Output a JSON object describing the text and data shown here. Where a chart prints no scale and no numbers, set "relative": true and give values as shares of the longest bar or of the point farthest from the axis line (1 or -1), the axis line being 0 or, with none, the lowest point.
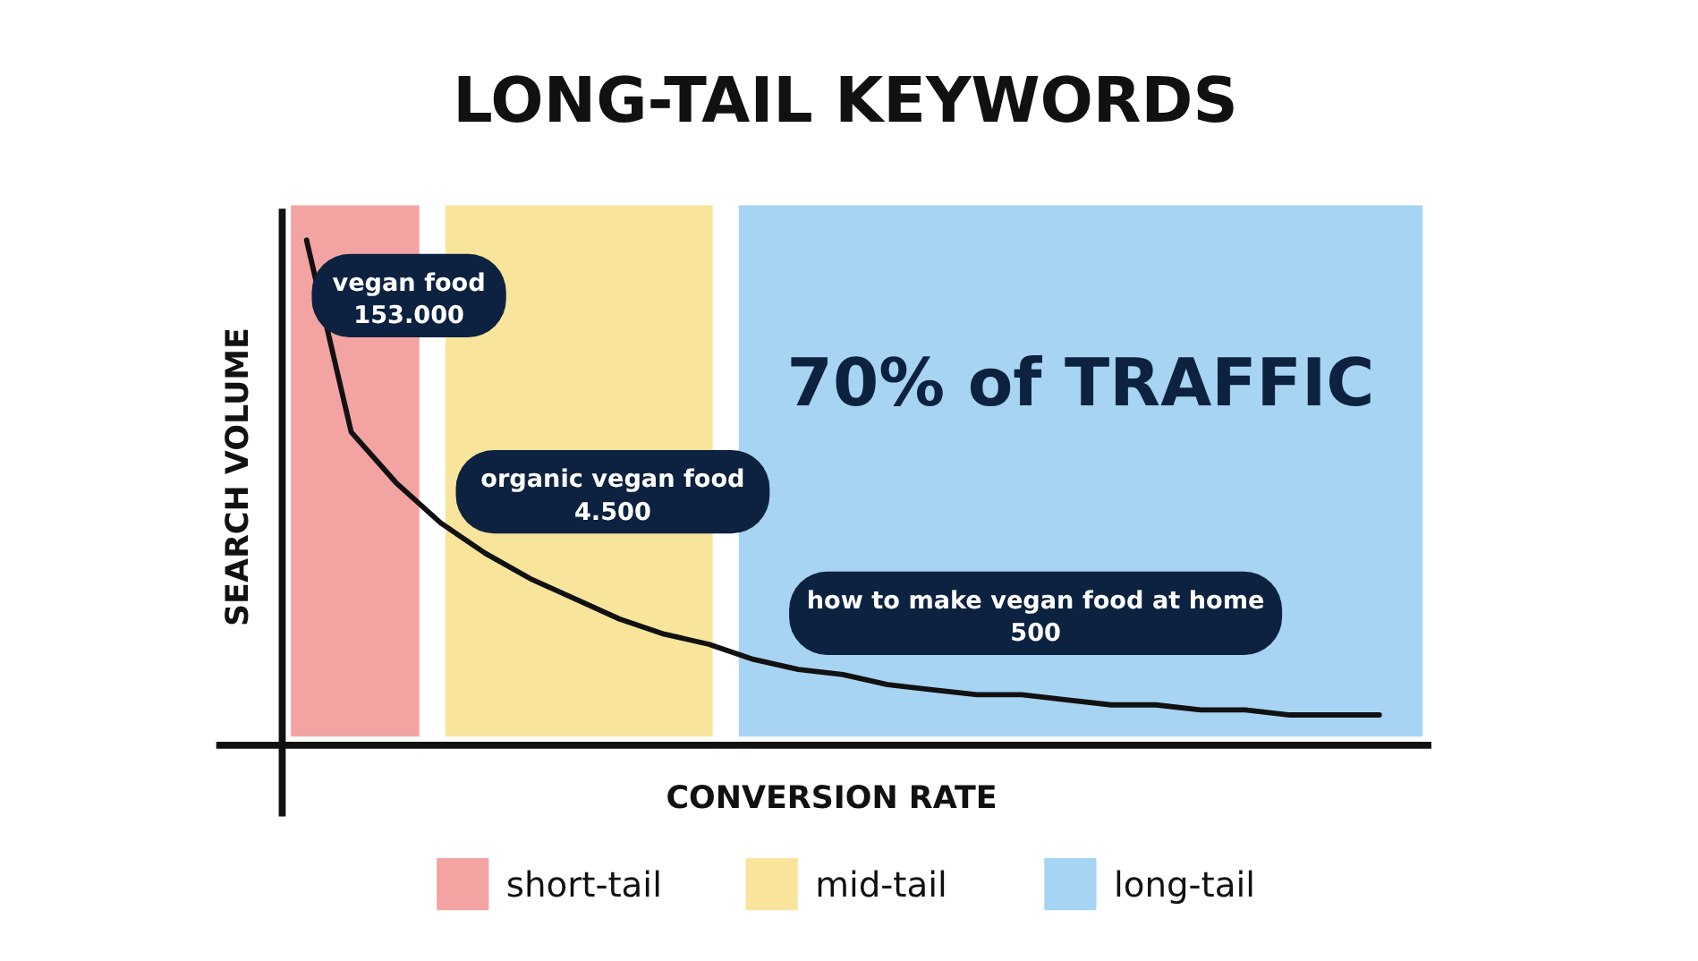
{
  "chart_data": {
    "type": "line",
    "title": "LONG-TAIL KEYWORDS",
    "xlabel": "CONVERSION RATE",
    "ylabel": "SEARCH VOLUME",
    "relative": true,
    "color": "#111111",
    "categories": [
      null,
      null,
      null,
      null,
      null,
      null,
      null,
      null,
      null,
      null,
      null,
      null,
      null,
      null,
      null,
      null,
      null,
      null,
      null,
      null,
      null,
      null,
      null,
      null,
      null
    ],
    "values": [
      1,
      0.62,
      0.52,
      0.44,
      0.38,
      0.33,
      0.29,
      0.25,
      0.22,
      0.2,
      0.17,
      0.15,
      0.14,
      0.12,
      0.11,
      0.1,
      0.1,
      0.09,
      0.08,
      0.08,
      0.07,
      0.07,
      0.06,
      0.06,
      0.06
    ],
    "annotations": [
      "vegan food\n153.000",
      "organic vegan food\n4.500",
      "how to make vegan food at home\n500",
      "70% of TRAFFIC",
      "short-tail",
      "mid-tail",
      "long-tail"
    ]
  }
}
